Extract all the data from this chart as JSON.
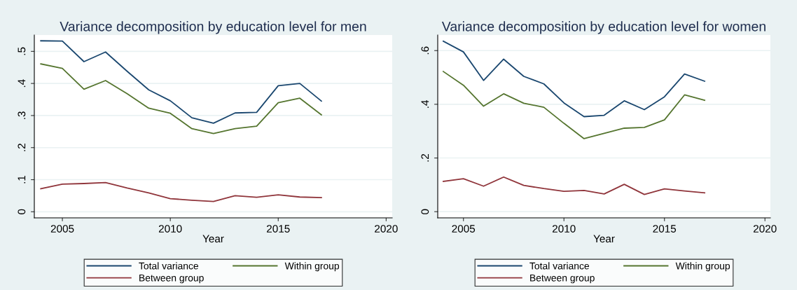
{
  "chart_data": [
    {
      "type": "line",
      "title": "Variance decomposition by education level for men",
      "xlabel": "Year",
      "x": [
        2004,
        2005,
        2006,
        2007,
        2008,
        2009,
        2010,
        2011,
        2012,
        2013,
        2014,
        2015,
        2016,
        2017
      ],
      "series": [
        {
          "name": "Total variance",
          "color": "#1a476f",
          "values": [
            0.533,
            0.532,
            0.468,
            0.498,
            0.438,
            0.38,
            0.346,
            0.293,
            0.276,
            0.308,
            0.31,
            0.393,
            0.4,
            0.345
          ]
        },
        {
          "name": "Between group",
          "color": "#90353b",
          "values": [
            0.072,
            0.086,
            0.088,
            0.091,
            0.074,
            0.059,
            0.041,
            0.036,
            0.032,
            0.05,
            0.045,
            0.053,
            0.046,
            0.044
          ]
        },
        {
          "name": "Within group",
          "color": "#55752f",
          "values": [
            0.461,
            0.447,
            0.382,
            0.409,
            0.368,
            0.323,
            0.307,
            0.259,
            0.244,
            0.259,
            0.267,
            0.34,
            0.354,
            0.302
          ]
        }
      ],
      "xlim": [
        2003.7,
        2020.28
      ],
      "xticks": [
        2005,
        2010,
        2015,
        2020
      ],
      "ylim": [
        -0.019,
        0.551
      ],
      "yticks": [
        0,
        {
          "value": 0.1,
          "label": ".1"
        },
        {
          "value": 0.2,
          "label": ".2"
        },
        {
          "value": 0.3,
          "label": ".3"
        },
        {
          "value": 0.4,
          "label": ".4"
        },
        {
          "value": 0.5,
          "label": ".5"
        }
      ],
      "grid": "y",
      "legend": "bottom",
      "line_style": "solid",
      "marker": "none"
    },
    {
      "type": "line",
      "title": "Variance decomposition by education level for women",
      "xlabel": "Year",
      "x": [
        2004,
        2005,
        2006,
        2007,
        2008,
        2009,
        2010,
        2011,
        2012,
        2013,
        2014,
        2015,
        2016,
        2017
      ],
      "series": [
        {
          "name": "Total variance",
          "color": "#1a476f",
          "values": [
            0.635,
            0.595,
            0.489,
            0.568,
            0.504,
            0.476,
            0.405,
            0.354,
            0.359,
            0.413,
            0.38,
            0.428,
            0.513,
            0.486
          ]
        },
        {
          "name": "Between group",
          "color": "#90353b",
          "values": [
            0.113,
            0.123,
            0.095,
            0.129,
            0.098,
            0.086,
            0.076,
            0.079,
            0.066,
            0.102,
            0.064,
            0.085,
            0.077,
            0.07
          ]
        },
        {
          "name": "Within group",
          "color": "#55752f",
          "values": [
            0.522,
            0.471,
            0.393,
            0.439,
            0.404,
            0.389,
            0.329,
            0.272,
            0.292,
            0.311,
            0.314,
            0.342,
            0.435,
            0.415
          ]
        }
      ],
      "xlim": [
        2003.72,
        2020.27
      ],
      "xticks": [
        2005,
        2010,
        2015,
        2020
      ],
      "ylim": [
        -0.023,
        0.658
      ],
      "yticks": [
        0,
        {
          "value": 0.2,
          "label": ".2"
        },
        {
          "value": 0.4,
          "label": ".4"
        },
        {
          "value": 0.6,
          "label": ".6"
        }
      ],
      "grid": "y",
      "legend": "bottom",
      "line_style": "solid",
      "marker": "none"
    }
  ]
}
